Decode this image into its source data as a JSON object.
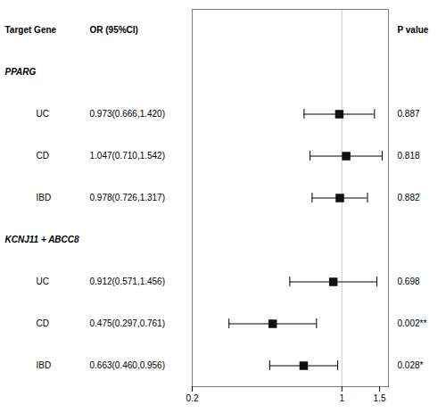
{
  "chart_data": {
    "type": "forest",
    "log": "x",
    "xlim": [
      0.2,
      1.65
    ],
    "xticks": [
      0.2,
      1,
      1.5
    ],
    "ref_line": 1,
    "grid": false,
    "color": "#111111",
    "headers": [
      "Target Gene",
      "OR (95%CI)",
      "P value"
    ],
    "groups": [
      {
        "label": "PPARG",
        "rows": [
          {
            "name": "UC",
            "value": 0.973,
            "ci_low": 0.666,
            "ci_high": 1.42,
            "value_label": "0.973(0.666,1.420)",
            "p_value": "0.887"
          },
          {
            "name": "CD",
            "value": 1.047,
            "ci_low": 0.71,
            "ci_high": 1.542,
            "value_label": "1.047(0.710,1.542)",
            "p_value": "0.818"
          },
          {
            "name": "IBD",
            "value": 0.978,
            "ci_low": 0.726,
            "ci_high": 1.317,
            "value_label": "0.978(0.726,1.317)",
            "p_value": "0.882"
          }
        ]
      },
      {
        "label": "KCNJ11 + ABCC8",
        "rows": [
          {
            "name": "UC",
            "value": 0.912,
            "ci_low": 0.571,
            "ci_high": 1.456,
            "value_label": "0.912(0.571,1.456)",
            "p_value": "0.698"
          },
          {
            "name": "CD",
            "value": 0.475,
            "ci_low": 0.297,
            "ci_high": 0.761,
            "value_label": "0.475(0.297,0.761)",
            "p_value": "0.002**"
          },
          {
            "name": "IBD",
            "value": 0.663,
            "ci_low": 0.46,
            "ci_high": 0.956,
            "value_label": "0.663(0.460,0.956)",
            "p_value": "0.028*"
          }
        ]
      }
    ]
  }
}
